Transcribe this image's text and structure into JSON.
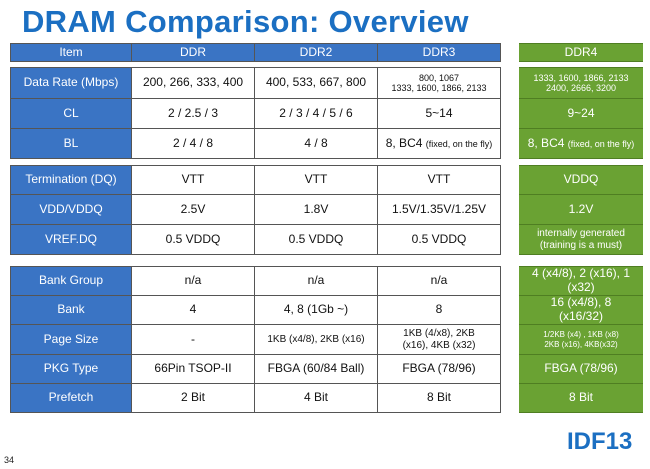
{
  "title": "DRAM Comparison: Overview",
  "header": {
    "item": "Item",
    "ddr": "DDR",
    "ddr2": "DDR2",
    "ddr3": "DDR3",
    "ddr4": "DDR4"
  },
  "rows": {
    "data_rate": {
      "label": "Data Rate (Mbps)",
      "ddr": "200, 266, 333, 400",
      "ddr2": "400, 533, 667, 800",
      "ddr3_line1": "800, 1067",
      "ddr3_line2": "1333, 1600, 1866, 2133",
      "ddr4_line1": "1333, 1600, 1866, 2133",
      "ddr4_line2": "2400, 2666, 3200"
    },
    "cl": {
      "label": "CL",
      "ddr": "2 / 2.5 / 3",
      "ddr2": "2 / 3 / 4 / 5 / 6",
      "ddr3": "5~14",
      "ddr4": "9~24"
    },
    "bl": {
      "label": "BL",
      "ddr": "2 / 4 / 8",
      "ddr2": "4 / 8",
      "ddr3_main": "8, BC4",
      "ddr3_note": "(fixed, on the fly)",
      "ddr4_main": "8, BC4",
      "ddr4_note": "(fixed, on the fly)"
    },
    "termination": {
      "label": "Termination (DQ)",
      "ddr": "VTT",
      "ddr2": "VTT",
      "ddr3": "VTT",
      "ddr4": "VDDQ"
    },
    "vdd": {
      "label": "VDD/VDDQ",
      "ddr": "2.5V",
      "ddr2": "1.8V",
      "ddr3": "1.5V/1.35V/1.25V",
      "ddr4": "1.2V"
    },
    "vref": {
      "label": "VREF.DQ",
      "ddr": "0.5 VDDQ",
      "ddr2": "0.5 VDDQ",
      "ddr3": "0.5 VDDQ",
      "ddr4_line1": "internally generated",
      "ddr4_line2": "(training is a must)"
    },
    "bank_group": {
      "label": "Bank Group",
      "ddr": "n/a",
      "ddr2": "n/a",
      "ddr3": "n/a",
      "ddr4_line1": "4 (x4/8), 2 (x16), 1",
      "ddr4_line2": "(x32)"
    },
    "bank": {
      "label": "Bank",
      "ddr": "4",
      "ddr2": "4, 8 (1Gb ~)",
      "ddr3": "8",
      "ddr4_line1": "16 (x4/8), 8",
      "ddr4_line2": "(x16/32)"
    },
    "page_size": {
      "label": "Page Size",
      "ddr": "-",
      "ddr2": "1KB (x4/8), 2KB (x16)",
      "ddr3_line1": "1KB (4/x8), 2KB",
      "ddr3_line2": "(x16), 4KB (x32)",
      "ddr4_line1": "1/2KB (x4) , 1KB (x8)",
      "ddr4_line2": "2KB (x16), 4KB(x32)"
    },
    "pkg": {
      "label": "PKG Type",
      "ddr": "66Pin TSOP-II",
      "ddr2": "FBGA (60/84 Ball)",
      "ddr3": "FBGA (78/96)",
      "ddr4": "FBGA (78/96)"
    },
    "prefetch": {
      "label": "Prefetch",
      "ddr": "2 Bit",
      "ddr2": "4 Bit",
      "ddr3": "8 Bit",
      "ddr4": "8 Bit"
    }
  },
  "logo": "IDF13",
  "page_number": "34",
  "colors": {
    "title_blue": "#1b6fc2",
    "header_blue": "#3a74c4",
    "ddr4_green": "#6aa233"
  }
}
